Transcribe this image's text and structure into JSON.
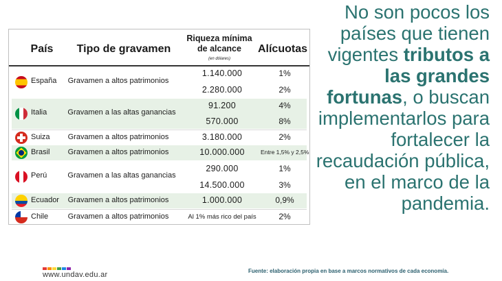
{
  "table": {
    "headers": {
      "country": "País",
      "tax_type": "Tipo de gravamen",
      "wealth": "Riqueza mínima de alcance",
      "wealth_note": "(en dólares)",
      "rates": "Alícuotas"
    },
    "rows": [
      {
        "country": "España",
        "tax": "Gravamen a altos patrimonios",
        "amounts": [
          "1.140.000",
          "2.280.000"
        ],
        "rates": [
          "1%",
          "2%"
        ]
      },
      {
        "country": "Italia",
        "tax": "Gravamen a las altas ganancias",
        "amounts": [
          "91.200",
          "570.000"
        ],
        "rates": [
          "4%",
          "8%"
        ]
      },
      {
        "country": "Suiza",
        "tax": "Gravamen a altos patrimonios",
        "amounts": [
          "3.180.000"
        ],
        "rates": [
          "2%"
        ]
      },
      {
        "country": "Brasil",
        "tax": "Gravamen a altos patrimonios",
        "amounts": [
          "10.000.000"
        ],
        "rates": [
          "Entre 1,5% y 2,5%"
        ]
      },
      {
        "country": "Perú",
        "tax": "Gravamen a las altas ganancias",
        "amounts": [
          "290.000",
          "14.500.000"
        ],
        "rates": [
          "1%",
          "3%"
        ]
      },
      {
        "country": "Ecuador",
        "tax": "Gravamen a altos patrimonios",
        "amounts": [
          "1.000.000"
        ],
        "rates": [
          "0,9%"
        ]
      },
      {
        "country": "Chile",
        "tax": "Gravamen a altos patrimonios",
        "amounts": [
          "Al 1% más rico del país"
        ],
        "rates": [
          "2%"
        ]
      }
    ]
  },
  "headline": {
    "part1": "No son pocos los países que tienen vigentes ",
    "bold": "tributos a las grandes fortunas",
    "part2": ", o buscan implementarlos para fortalecer la recaudación pública, en el marco de la pandemia."
  },
  "footer": {
    "url": "www.undav.edu.ar",
    "source": "Fuente: elaboración propia en base a marcos normativos de cada economía."
  },
  "colors": {
    "accent": "#2b7370",
    "row_shade": "#e7f1e6",
    "logo_dots": [
      "#e53935",
      "#fb8c00",
      "#fdd835",
      "#43a047",
      "#1e88e5",
      "#8e24aa"
    ]
  }
}
